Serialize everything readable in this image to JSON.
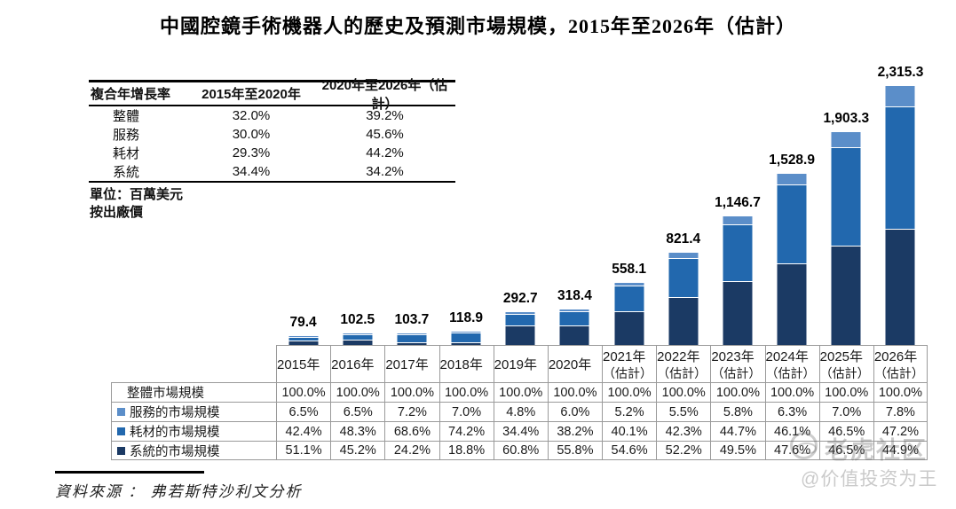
{
  "title": "中國腔鏡手術機器人的歷史及預測市場規模，2015年至2026年（估計）",
  "cagr_table": {
    "headers": [
      "複合年增長率",
      "2015年至2020年",
      "2020年至2026年（估計）"
    ],
    "rows": [
      {
        "label": "整體",
        "v2015_2020": "32.0%",
        "v2020_2026": "39.2%"
      },
      {
        "label": "服務",
        "v2015_2020": "30.0%",
        "v2020_2026": "45.6%"
      },
      {
        "label": "耗材",
        "v2015_2020": "29.3%",
        "v2020_2026": "44.2%"
      },
      {
        "label": "系統",
        "v2015_2020": "34.4%",
        "v2020_2026": "34.2%"
      }
    ]
  },
  "unit_note_line1": "單位：百萬美元",
  "unit_note_line2": "按出廠價",
  "chart_data": {
    "type": "bar",
    "stacked": true,
    "title": "中國腔鏡手術機器人的歷史及預測市場規模，2015年至2026年（估計）",
    "unit": "百萬美元（按出廠價）",
    "categories": [
      "2015年",
      "2016年",
      "2017年",
      "2018年",
      "2019年",
      "2020年",
      "2021年（估計）",
      "2022年（估計）",
      "2023年（估計）",
      "2024年（估計）",
      "2025年（估計）",
      "2026年（估計）"
    ],
    "totals": [
      79.4,
      102.5,
      103.7,
      118.9,
      292.7,
      318.4,
      558.1,
      821.4,
      1146.7,
      1528.9,
      1903.3,
      2315.3
    ],
    "total_labels": [
      "79.4",
      "102.5",
      "103.7",
      "118.9",
      "292.7",
      "318.4",
      "558.1",
      "821.4",
      "1,146.7",
      "1,528.9",
      "1,903.3",
      "2,315.3"
    ],
    "series": [
      {
        "name": "系統的市場規模",
        "color": "#1b3a64",
        "pct_of_total": [
          51.1,
          45.2,
          24.2,
          18.8,
          60.8,
          55.8,
          54.6,
          52.2,
          49.5,
          47.6,
          46.5,
          44.9
        ]
      },
      {
        "name": "耗材的市場規模",
        "color": "#2268ae",
        "pct_of_total": [
          42.4,
          48.3,
          68.6,
          74.2,
          34.4,
          38.2,
          40.1,
          42.3,
          44.7,
          46.1,
          46.5,
          47.2
        ]
      },
      {
        "name": "服務的市場規模",
        "color": "#5b8ec9",
        "pct_of_total": [
          6.5,
          6.5,
          7.2,
          7.0,
          4.8,
          6.0,
          5.2,
          5.5,
          5.8,
          6.3,
          7.0,
          7.8
        ]
      }
    ],
    "ylim": [
      0,
      2400
    ],
    "grid": false,
    "legend_position": "bottom-table-left"
  },
  "bottom_table": {
    "year_headers": [
      {
        "line1": "2015年",
        "line2": ""
      },
      {
        "line1": "2016年",
        "line2": ""
      },
      {
        "line1": "2017年",
        "line2": ""
      },
      {
        "line1": "2018年",
        "line2": ""
      },
      {
        "line1": "2019年",
        "line2": ""
      },
      {
        "line1": "2020年",
        "line2": ""
      },
      {
        "line1": "2021年",
        "line2": "（估計）"
      },
      {
        "line1": "2022年",
        "line2": "（估計）"
      },
      {
        "line1": "2023年",
        "line2": "（估計）"
      },
      {
        "line1": "2024年",
        "line2": "（估計）"
      },
      {
        "line1": "2025年",
        "line2": "（估計）"
      },
      {
        "line1": "2026年",
        "line2": "（估計）"
      }
    ],
    "rows": [
      {
        "label": "整體市場規模",
        "square_color": "",
        "values": [
          "100.0%",
          "100.0%",
          "100.0%",
          "100.0%",
          "100.0%",
          "100.0%",
          "100.0%",
          "100.0%",
          "100.0%",
          "100.0%",
          "100.0%",
          "100.0%"
        ]
      },
      {
        "label": "服務的市場規模",
        "square_color": "#5b8ec9",
        "values": [
          "6.5%",
          "6.5%",
          "7.2%",
          "7.0%",
          "4.8%",
          "6.0%",
          "5.2%",
          "5.5%",
          "5.8%",
          "6.3%",
          "7.0%",
          "7.8%"
        ]
      },
      {
        "label": "耗材的市場規模",
        "square_color": "#2268ae",
        "values": [
          "42.4%",
          "48.3%",
          "68.6%",
          "74.2%",
          "34.4%",
          "38.2%",
          "40.1%",
          "42.3%",
          "44.7%",
          "46.1%",
          "46.5%",
          "47.2%"
        ]
      },
      {
        "label": "系統的市場規模",
        "square_color": "#1b3a64",
        "values": [
          "51.1%",
          "45.2%",
          "24.2%",
          "18.8%",
          "60.8%",
          "55.8%",
          "54.6%",
          "52.2%",
          "49.5%",
          "47.6%",
          "46.5%",
          "44.9%"
        ]
      }
    ]
  },
  "source_text": "資料來源 ： 弗若斯特沙利文分析",
  "watermark": {
    "community_name": "老虎社区",
    "user_handle": "@价值投资为王"
  },
  "colors": {
    "system_dark_blue": "#1b3a64",
    "consumables_mid_blue": "#2268ae",
    "services_light_blue": "#5b8ec9",
    "table_border_gray": "#9a9a9a"
  }
}
